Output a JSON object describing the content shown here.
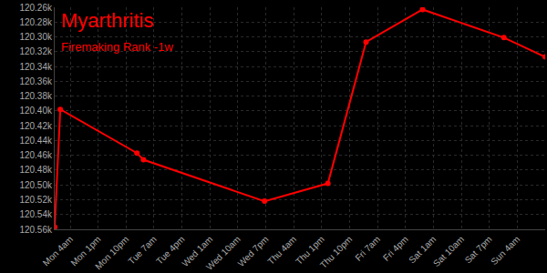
{
  "chart_data": {
    "type": "line",
    "title": "Myarthritis",
    "subtitle": "Firemaking Rank -1w",
    "x": [
      -1,
      0.8,
      25.5,
      27.6,
      66.6,
      87,
      99.3,
      117.5,
      143.7,
      157
    ],
    "values": [
      120557,
      120398,
      120457,
      120466,
      120522,
      120498,
      120307,
      120263,
      120301,
      120327
    ],
    "color": "#ff0000",
    "marker": "circle",
    "grid": true,
    "xlim": [
      -1,
      157
    ],
    "xticks": [
      {
        "value": 4,
        "label": "Mon 4am"
      },
      {
        "value": 13,
        "label": "Mon 1pm"
      },
      {
        "value": 22,
        "label": "Mon 10pm"
      },
      {
        "value": 31,
        "label": "Tue 7am"
      },
      {
        "value": 40,
        "label": "Tue 4pm"
      },
      {
        "value": 49,
        "label": "Wed 1am"
      },
      {
        "value": 58,
        "label": "Wed 10am"
      },
      {
        "value": 67,
        "label": "Wed 7pm"
      },
      {
        "value": 76,
        "label": "Thu 4am"
      },
      {
        "value": 85,
        "label": "Thu 1pm"
      },
      {
        "value": 94,
        "label": "Thu 10pm"
      },
      {
        "value": 103,
        "label": "Fri 7am"
      },
      {
        "value": 112,
        "label": "Fri 4pm"
      },
      {
        "value": 121,
        "label": "Sat 1am"
      },
      {
        "value": 130,
        "label": "Sat 10am"
      },
      {
        "value": 139,
        "label": "Sat 7pm"
      },
      {
        "value": 148,
        "label": "Sun 4am"
      }
    ],
    "ylim": [
      120560,
      120260
    ],
    "yticks": [
      {
        "value": 120260,
        "label": "120.26k"
      },
      {
        "value": 120280,
        "label": "120.28k"
      },
      {
        "value": 120300,
        "label": "120.30k"
      },
      {
        "value": 120320,
        "label": "120.32k"
      },
      {
        "value": 120340,
        "label": "120.34k"
      },
      {
        "value": 120360,
        "label": "120.36k"
      },
      {
        "value": 120380,
        "label": "120.38k"
      },
      {
        "value": 120400,
        "label": "120.40k"
      },
      {
        "value": 120420,
        "label": "120.42k"
      },
      {
        "value": 120440,
        "label": "120.44k"
      },
      {
        "value": 120460,
        "label": "120.46k"
      },
      {
        "value": 120480,
        "label": "120.48k"
      },
      {
        "value": 120500,
        "label": "120.50k"
      },
      {
        "value": 120520,
        "label": "120.52k"
      },
      {
        "value": 120540,
        "label": "120.54k"
      },
      {
        "value": 120560,
        "label": "120.56k"
      }
    ]
  }
}
